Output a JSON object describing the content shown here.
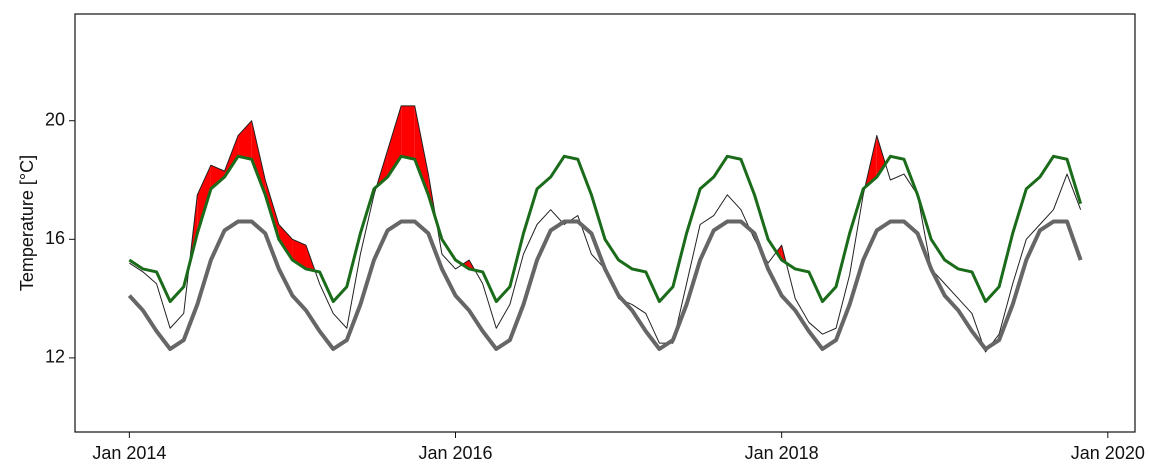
{
  "chart_data": {
    "type": "line",
    "ylabel": "Temperature [°C]",
    "x": [
      "2014-01",
      "2014-02",
      "2014-03",
      "2014-04",
      "2014-05",
      "2014-06",
      "2014-07",
      "2014-08",
      "2014-09",
      "2014-10",
      "2014-11",
      "2014-12",
      "2015-01",
      "2015-02",
      "2015-03",
      "2015-04",
      "2015-05",
      "2015-06",
      "2015-07",
      "2015-08",
      "2015-09",
      "2015-10",
      "2015-11",
      "2015-12",
      "2016-01",
      "2016-02",
      "2016-03",
      "2016-04",
      "2016-05",
      "2016-06",
      "2016-07",
      "2016-08",
      "2016-09",
      "2016-10",
      "2016-11",
      "2016-12",
      "2017-01",
      "2017-02",
      "2017-03",
      "2017-04",
      "2017-05",
      "2017-06",
      "2017-07",
      "2017-08",
      "2017-09",
      "2017-10",
      "2017-11",
      "2017-12",
      "2018-01",
      "2018-02",
      "2018-03",
      "2018-04",
      "2018-05",
      "2018-06",
      "2018-07",
      "2018-08",
      "2018-09",
      "2018-10",
      "2018-11",
      "2018-12",
      "2019-01",
      "2019-02",
      "2019-03",
      "2019-04",
      "2019-05",
      "2019-06",
      "2019-07",
      "2019-08",
      "2019-09",
      "2019-10",
      "2019-11"
    ],
    "series": [
      {
        "color": "#222222",
        "values": [
          15.2,
          14.9,
          14.5,
          13.0,
          13.5,
          17.5,
          18.5,
          18.3,
          19.5,
          20.0,
          18.0,
          16.5,
          16.0,
          15.8,
          14.5,
          13.5,
          13.0,
          15.5,
          17.5,
          19.0,
          20.5,
          20.5,
          18.2,
          15.5,
          15.0,
          15.3,
          14.5,
          13.0,
          13.8,
          15.5,
          16.5,
          17.0,
          16.5,
          16.8,
          15.5,
          15.0,
          14.0,
          13.8,
          13.5,
          12.5,
          12.5,
          14.5,
          16.5,
          16.8,
          17.5,
          17.0,
          16.0,
          15.2,
          15.8,
          14.0,
          13.2,
          12.8,
          13.0,
          14.8,
          17.5,
          19.5,
          18.0,
          18.2,
          17.5,
          15.0,
          14.5,
          14.0,
          13.5,
          12.2,
          12.8,
          14.5,
          16.0,
          16.5,
          17.0,
          18.2,
          17.0
        ]
      },
      {
        "color": "#666666",
        "values": [
          14.1,
          13.6,
          12.9,
          12.3,
          12.6,
          13.8,
          15.3,
          16.3,
          16.6,
          16.6,
          16.2,
          15.0,
          14.1,
          13.6,
          12.9,
          12.3,
          12.6,
          13.8,
          15.3,
          16.3,
          16.6,
          16.6,
          16.2,
          15.0,
          14.1,
          13.6,
          12.9,
          12.3,
          12.6,
          13.8,
          15.3,
          16.3,
          16.6,
          16.6,
          16.2,
          15.0,
          14.1,
          13.6,
          12.9,
          12.3,
          12.6,
          13.8,
          15.3,
          16.3,
          16.6,
          16.6,
          16.2,
          15.0,
          14.1,
          13.6,
          12.9,
          12.3,
          12.6,
          13.8,
          15.3,
          16.3,
          16.6,
          16.6,
          16.2,
          15.0,
          14.1,
          13.6,
          12.9,
          12.3,
          12.6,
          13.8,
          15.3,
          16.3,
          16.6,
          16.6,
          15.3
        ]
      },
      {
        "color": "#1a6b1a",
        "values": [
          15.3,
          15.0,
          14.9,
          13.9,
          14.4,
          16.2,
          17.7,
          18.1,
          18.8,
          18.7,
          17.5,
          16.0,
          15.3,
          15.0,
          14.9,
          13.9,
          14.4,
          16.2,
          17.7,
          18.1,
          18.8,
          18.7,
          17.5,
          16.0,
          15.3,
          15.0,
          14.9,
          13.9,
          14.4,
          16.2,
          17.7,
          18.1,
          18.8,
          18.7,
          17.5,
          16.0,
          15.3,
          15.0,
          14.9,
          13.9,
          14.4,
          16.2,
          17.7,
          18.1,
          18.8,
          18.7,
          17.5,
          16.0,
          15.3,
          15.0,
          14.9,
          13.9,
          14.4,
          16.2,
          17.7,
          18.1,
          18.8,
          18.7,
          17.5,
          16.0,
          15.3,
          15.0,
          14.9,
          13.9,
          14.4,
          16.2,
          17.7,
          18.1,
          18.8,
          18.7,
          17.2
        ]
      }
    ],
    "fill_color": "#ff0000",
    "xlim": [
      "2013-09",
      "2020-03"
    ],
    "xticks": [
      {
        "value": "2014-01",
        "label": "Jan 2014"
      },
      {
        "value": "2016-01",
        "label": "Jan 2016"
      },
      {
        "value": "2018-01",
        "label": "Jan 2018"
      },
      {
        "value": "2020-01",
        "label": "Jan 2020"
      }
    ],
    "ylim": [
      9.5,
      23.6
    ],
    "yticks": [
      12,
      16,
      20
    ],
    "grid": false
  }
}
